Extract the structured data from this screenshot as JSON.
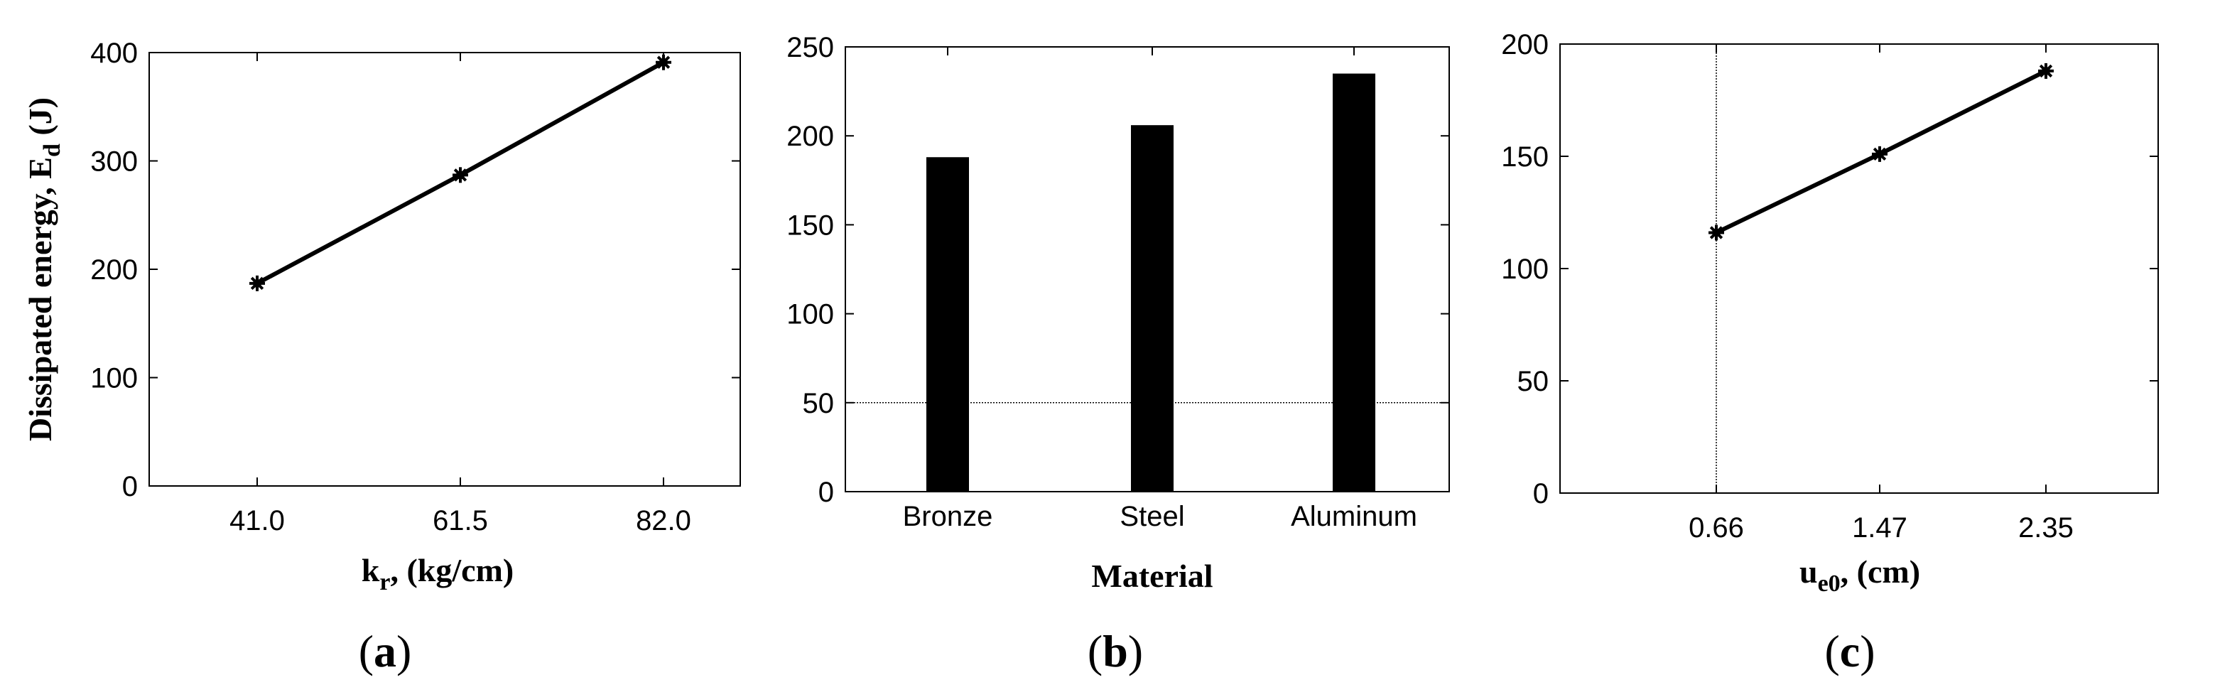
{
  "chart_data": [
    {
      "panel_label": "a",
      "type": "line",
      "x": [
        "41.0",
        "61.5",
        "82.0"
      ],
      "y": [
        187,
        287,
        391
      ],
      "xlabel": {
        "main": "k",
        "sub": "r",
        "rest": ", (kg/cm)"
      },
      "ylabel": {
        "main": "Dissipated energy, E",
        "sub": "d",
        "rest": " (J)"
      },
      "ylim": [
        0,
        400
      ],
      "yticks": [
        "0",
        "100",
        "200",
        "300",
        "400"
      ],
      "xticks": [
        "41.0",
        "61.5",
        "82.0"
      ],
      "marker": "asterisk",
      "grid": false
    },
    {
      "panel_label": "b",
      "type": "bar",
      "categories": [
        "Bronze",
        "Steel",
        "Aluminum"
      ],
      "values": [
        188,
        206,
        235
      ],
      "xlabel": "Material",
      "ylim": [
        0,
        250
      ],
      "yticks": [
        "0",
        "50",
        "100",
        "150",
        "200",
        "250"
      ],
      "reference_line_y": 50,
      "bar_color": "#000000",
      "grid": false
    },
    {
      "panel_label": "c",
      "type": "line",
      "x": [
        "0.66",
        "1.47",
        "2.35"
      ],
      "y": [
        116,
        151,
        188
      ],
      "xlabel": {
        "main": "u",
        "sub": "e0",
        "rest": ", (cm)"
      },
      "ylim": [
        0,
        200
      ],
      "yticks": [
        "0",
        "50",
        "100",
        "150",
        "200"
      ],
      "xticks": [
        "0.66",
        "1.47",
        "2.35"
      ],
      "reference_line_x": "0.66",
      "marker": "asterisk",
      "grid": false
    }
  ]
}
